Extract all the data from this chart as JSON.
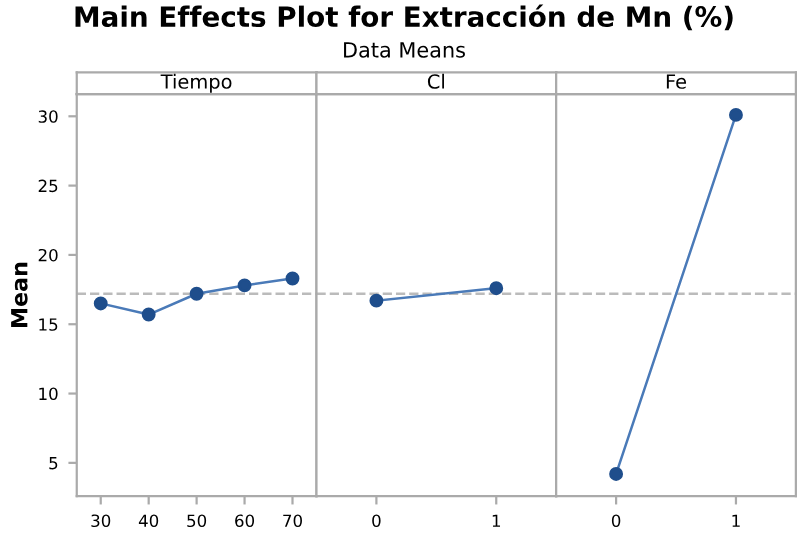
{
  "chart_data": [
    {
      "type": "line",
      "title": "Tiempo",
      "ylabel": "Mean",
      "annotations": [
        "Main Effects Plot for Extracción de Mn (%)",
        "Data Means"
      ],
      "categories": [
        "30",
        "40",
        "50",
        "60",
        "70"
      ],
      "series": [
        {
          "color": "#1f4e8c",
          "values": [
            16.5,
            15.7,
            17.2,
            17.8,
            18.3
          ]
        }
      ],
      "ylim": [
        2.6,
        31.6
      ],
      "yticks": [
        5,
        10,
        15,
        20,
        25,
        30
      ],
      "ref_lines": [
        {
          "axis": "y",
          "value": 17.2,
          "color": "#bbbbbb",
          "line_style": "dashed"
        }
      ],
      "marker": "circle",
      "grid": false
    },
    {
      "type": "line",
      "title": "Cl",
      "categories": [
        "0",
        "1"
      ],
      "series": [
        {
          "color": "#1f4e8c",
          "values": [
            16.7,
            17.6
          ]
        }
      ],
      "ylim": [
        2.6,
        31.6
      ],
      "yticks": [
        5,
        10,
        15,
        20,
        25,
        30
      ],
      "tick_labels": "x",
      "ref_lines": [
        {
          "axis": "y",
          "value": 17.2,
          "color": "#bbbbbb",
          "line_style": "dashed"
        }
      ],
      "marker": "circle",
      "grid": false
    },
    {
      "type": "line",
      "title": "Fe",
      "categories": [
        "0",
        "1"
      ],
      "series": [
        {
          "color": "#1f4e8c",
          "values": [
            4.2,
            30.1
          ]
        }
      ],
      "ylim": [
        2.6,
        31.6
      ],
      "yticks": [
        5,
        10,
        15,
        20,
        25,
        30
      ],
      "tick_labels": "x",
      "ref_lines": [
        {
          "axis": "y",
          "value": 17.2,
          "color": "#bbbbbb",
          "line_style": "dashed"
        }
      ],
      "marker": "circle",
      "grid": false
    }
  ]
}
